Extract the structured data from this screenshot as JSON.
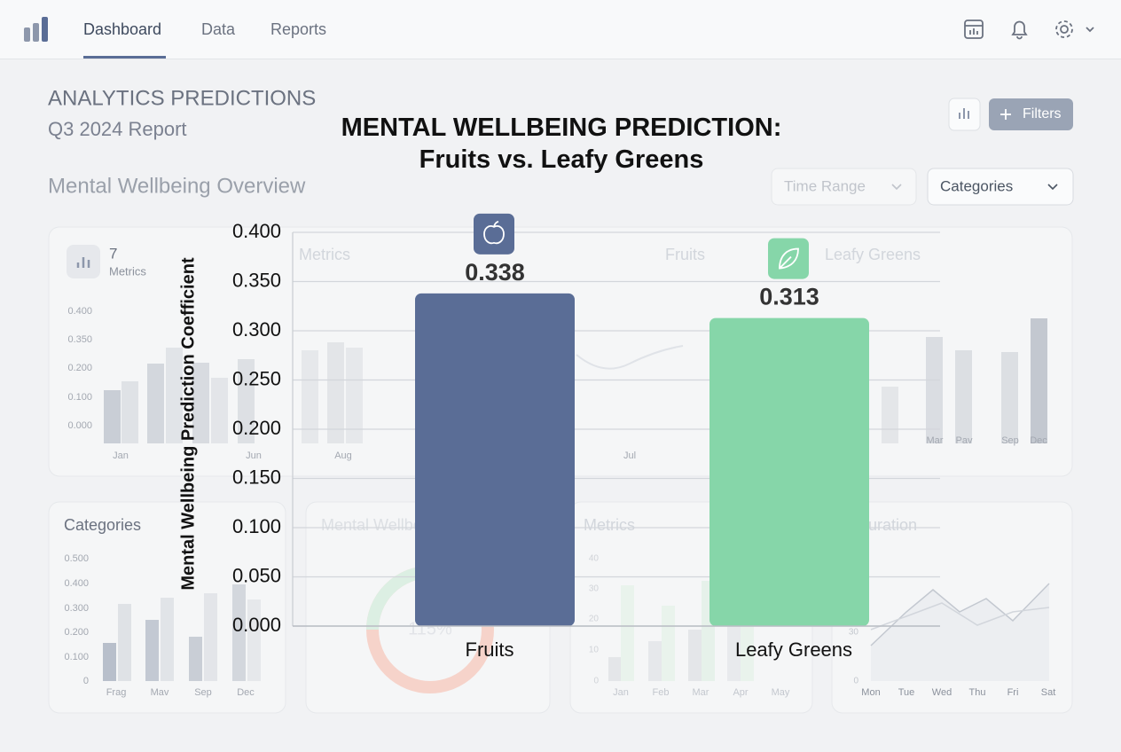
{
  "nav": {
    "items": [
      "Dashboard",
      "Data",
      "Reports"
    ]
  },
  "header": {
    "title": "ANALYTICS PREDICTIONS",
    "subtitle": "Q3 2024 Report",
    "section": "Mental Wellbeing Overview",
    "filters_button": "Filters",
    "dropdowns": [
      "Time Range",
      "Categories"
    ]
  },
  "background": {
    "top_card": {
      "count": "7",
      "label": "Metrics",
      "headers": [
        "Metrics",
        "Fruits",
        "Leafy Greens"
      ],
      "yticks": [
        "0.400",
        "0.350",
        "0.200",
        "0.100",
        "0.000"
      ],
      "xlabels": [
        "Jan",
        "Jun",
        "Aug",
        "Jul",
        "Mar",
        "Pav",
        "Sep",
        "Dec"
      ]
    },
    "categories_card": {
      "title": "Categories",
      "yticks": [
        "0.500",
        "0.400",
        "0.300",
        "0.200",
        "0.100",
        "0"
      ],
      "xlabels": [
        "Frag",
        "Mav",
        "Sep",
        "Dec"
      ]
    },
    "donut_card": {
      "title": "Mental Wellbeing",
      "center": "115%"
    },
    "metrics_card": {
      "title": "Metrics",
      "yticks": [
        "40",
        "30",
        "20",
        "10",
        "0"
      ],
      "xlabels": [
        "Jan",
        "Feb",
        "Mar",
        "Apr",
        "May"
      ]
    },
    "duration_card": {
      "title": "Duration",
      "yticks": [
        "30",
        "0"
      ],
      "xlabels": [
        "Mon",
        "Tue",
        "Wed",
        "Thu",
        "Fri",
        "Sat"
      ]
    }
  },
  "chart_data": {
    "type": "bar",
    "title": "MENTAL WELLBEING PREDICTION: Fruits vs. Leafy Greens",
    "ylabel": "Mental Wellbeing Prediction Coefficient",
    "categories": [
      "Fruits",
      "Leafy Greens"
    ],
    "values": [
      0.338,
      0.313
    ],
    "colors": [
      "#5a6d96",
      "#86d6a9"
    ],
    "ylim": [
      0,
      0.4
    ],
    "yticks": [
      {
        "value": 0,
        "label": "0.000"
      },
      {
        "value": 0.05,
        "label": "0.050"
      },
      {
        "value": 0.1,
        "label": "0.100"
      },
      {
        "value": 0.15,
        "label": "0.150"
      },
      {
        "value": 0.2,
        "label": "0.200"
      },
      {
        "value": 0.25,
        "label": "0.250"
      },
      {
        "value": 0.3,
        "label": "0.300"
      },
      {
        "value": 0.35,
        "label": "0.350"
      },
      {
        "value": 0.4,
        "label": "0.400"
      }
    ],
    "grid": true
  }
}
